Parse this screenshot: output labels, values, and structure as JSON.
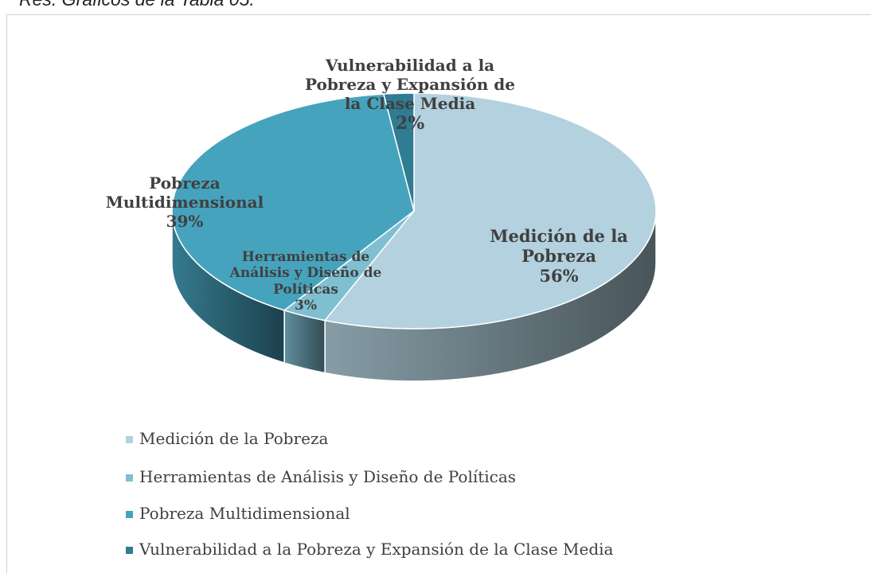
{
  "caption": "Res. Gráficos de la Tabla 05.",
  "chart_data": {
    "type": "pie3d",
    "categories": [
      "Medición de la Pobreza",
      "Herramientas de Análisis y Diseño de Políticas",
      "Pobreza Multidimensional",
      "Vulnerabilidad a la Pobreza y Expansión de la Clase Media"
    ],
    "values": [
      56,
      3,
      39,
      2
    ],
    "value_labels": [
      "56%",
      "3%",
      "39%",
      "2%"
    ],
    "colors": [
      "#b3d1de",
      "#7fbfd1",
      "#46a3bd",
      "#2f7c93"
    ],
    "legend": "bottom"
  }
}
